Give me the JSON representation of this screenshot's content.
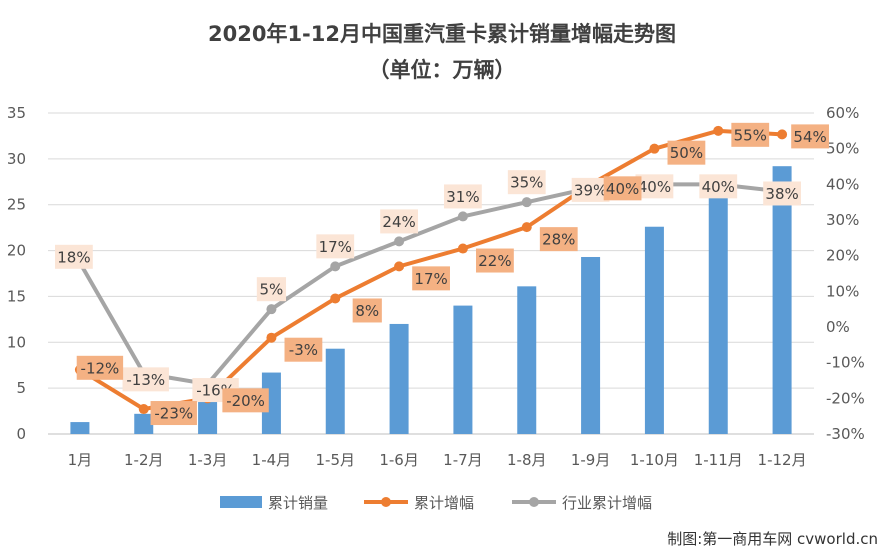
{
  "title": "2020年1-12月中国重汽重卡累计销量增幅走势图",
  "subtitle": "（单位：万辆）",
  "watermark": "制图:第一商用车网 cvworld.cn",
  "colors": {
    "bar": "#5b9bd5",
    "cum_growth": "#ed7d31",
    "industry_growth": "#a5a5a5",
    "cum_label_bg": "#f4b183",
    "ind_label_bg": "#fbe5d6",
    "grid": "#d9d9d9"
  },
  "chart_data": {
    "type": "bar",
    "categories": [
      "1月",
      "1-2月",
      "1-3月",
      "1-4月",
      "1-5月",
      "1-6月",
      "1-7月",
      "1-8月",
      "1-9月",
      "1-10月",
      "1-11月",
      "1-12月"
    ],
    "ylim": [
      0,
      35
    ],
    "yticks": [
      "0",
      "5",
      "10",
      "15",
      "20",
      "25",
      "30",
      "35"
    ],
    "y2lim": [
      -30,
      60
    ],
    "y2ticks": [
      "-30%",
      "-20%",
      "-10%",
      "0%",
      "10%",
      "20%",
      "30%",
      "40%",
      "50%",
      "60%"
    ],
    "grid": true,
    "legend_position": "bottom",
    "series": [
      {
        "name": "累计销量",
        "type": "bar",
        "axis": "left",
        "values": [
          1.3,
          2.2,
          4.2,
          6.7,
          9.3,
          12.0,
          14.0,
          16.1,
          19.3,
          22.6,
          25.8,
          29.2
        ]
      },
      {
        "name": "累计增幅",
        "type": "line",
        "axis": "right",
        "values": [
          -12,
          -23,
          -20,
          -3,
          8,
          17,
          22,
          28,
          40,
          50,
          55,
          54
        ],
        "labels": [
          "-12%",
          "-23%",
          "-20%",
          "-3%",
          "8%",
          "17%",
          "22%",
          "28%",
          "40%",
          "50%",
          "55%",
          "54%"
        ]
      },
      {
        "name": "行业累计增幅",
        "type": "line",
        "axis": "right",
        "values": [
          18,
          -13,
          -16,
          5,
          17,
          24,
          31,
          35,
          39,
          40,
          40,
          38
        ],
        "labels": [
          "18%",
          "-13%",
          "-16%",
          "5%",
          "17%",
          "24%",
          "31%",
          "35%",
          "39%",
          "40%",
          "40%",
          "38%"
        ]
      }
    ]
  }
}
